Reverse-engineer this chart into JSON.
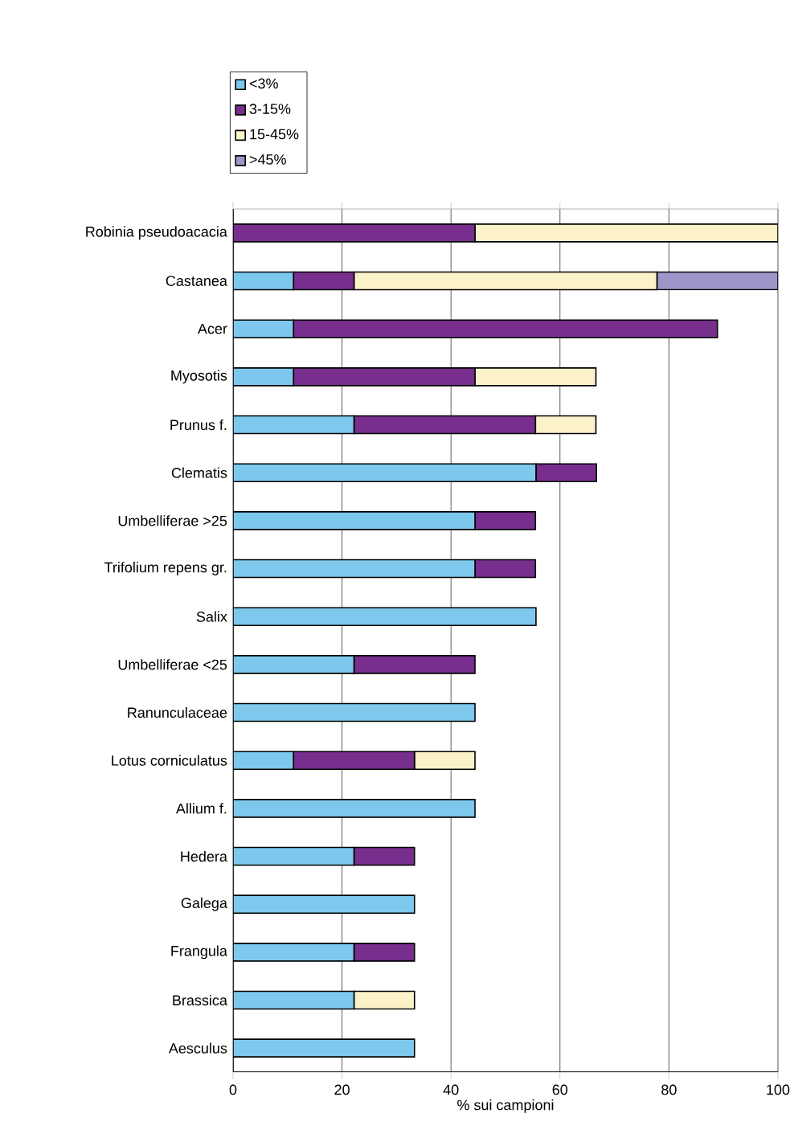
{
  "chart_data": {
    "type": "bar",
    "orientation": "horizontal",
    "stacked": true,
    "xlabel": "% sui campioni",
    "categories": [
      "Robinia pseudoacacia",
      "Castanea",
      "Acer",
      "Myosotis",
      "Prunus f.",
      "Clematis",
      "Umbelliferae >25",
      "Trifolium repens gr.",
      "Salix",
      "Umbelliferae <25",
      "Ranunculaceae",
      "Lotus corniculatus",
      "Allium f.",
      "Hedera",
      "Galega",
      "Frangula",
      "Brassica",
      "Aesculus"
    ],
    "series": [
      {
        "name": "<3%",
        "color": "#7dc8ec",
        "values": [
          0,
          11.1,
          11.1,
          11.1,
          22.2,
          55.6,
          44.4,
          44.4,
          55.6,
          22.2,
          44.4,
          11.1,
          44.4,
          22.2,
          33.3,
          22.2,
          22.2,
          33.3
        ]
      },
      {
        "name": "3-15%",
        "color": "#772e8c",
        "values": [
          44.4,
          11.1,
          77.8,
          33.3,
          33.3,
          11.1,
          11.1,
          11.1,
          0,
          22.2,
          0,
          22.2,
          0,
          11.1,
          0,
          11.1,
          0,
          0
        ]
      },
      {
        "name": "15-45%",
        "color": "#fbf2c9",
        "values": [
          55.6,
          55.6,
          0,
          22.2,
          11.1,
          0,
          0,
          0,
          0,
          0,
          0,
          11.1,
          0,
          0,
          0,
          0,
          11.1,
          0
        ]
      },
      {
        "name": ">45%",
        "color": "#a095c9",
        "values": [
          0,
          22.2,
          0,
          0,
          0,
          0,
          0,
          0,
          0,
          0,
          0,
          0,
          0,
          0,
          0,
          0,
          0,
          0
        ]
      }
    ],
    "xlim": [
      0,
      100
    ],
    "xticks": [
      0,
      20,
      40,
      60,
      80,
      100
    ],
    "grid": "x",
    "legend": "top left"
  }
}
